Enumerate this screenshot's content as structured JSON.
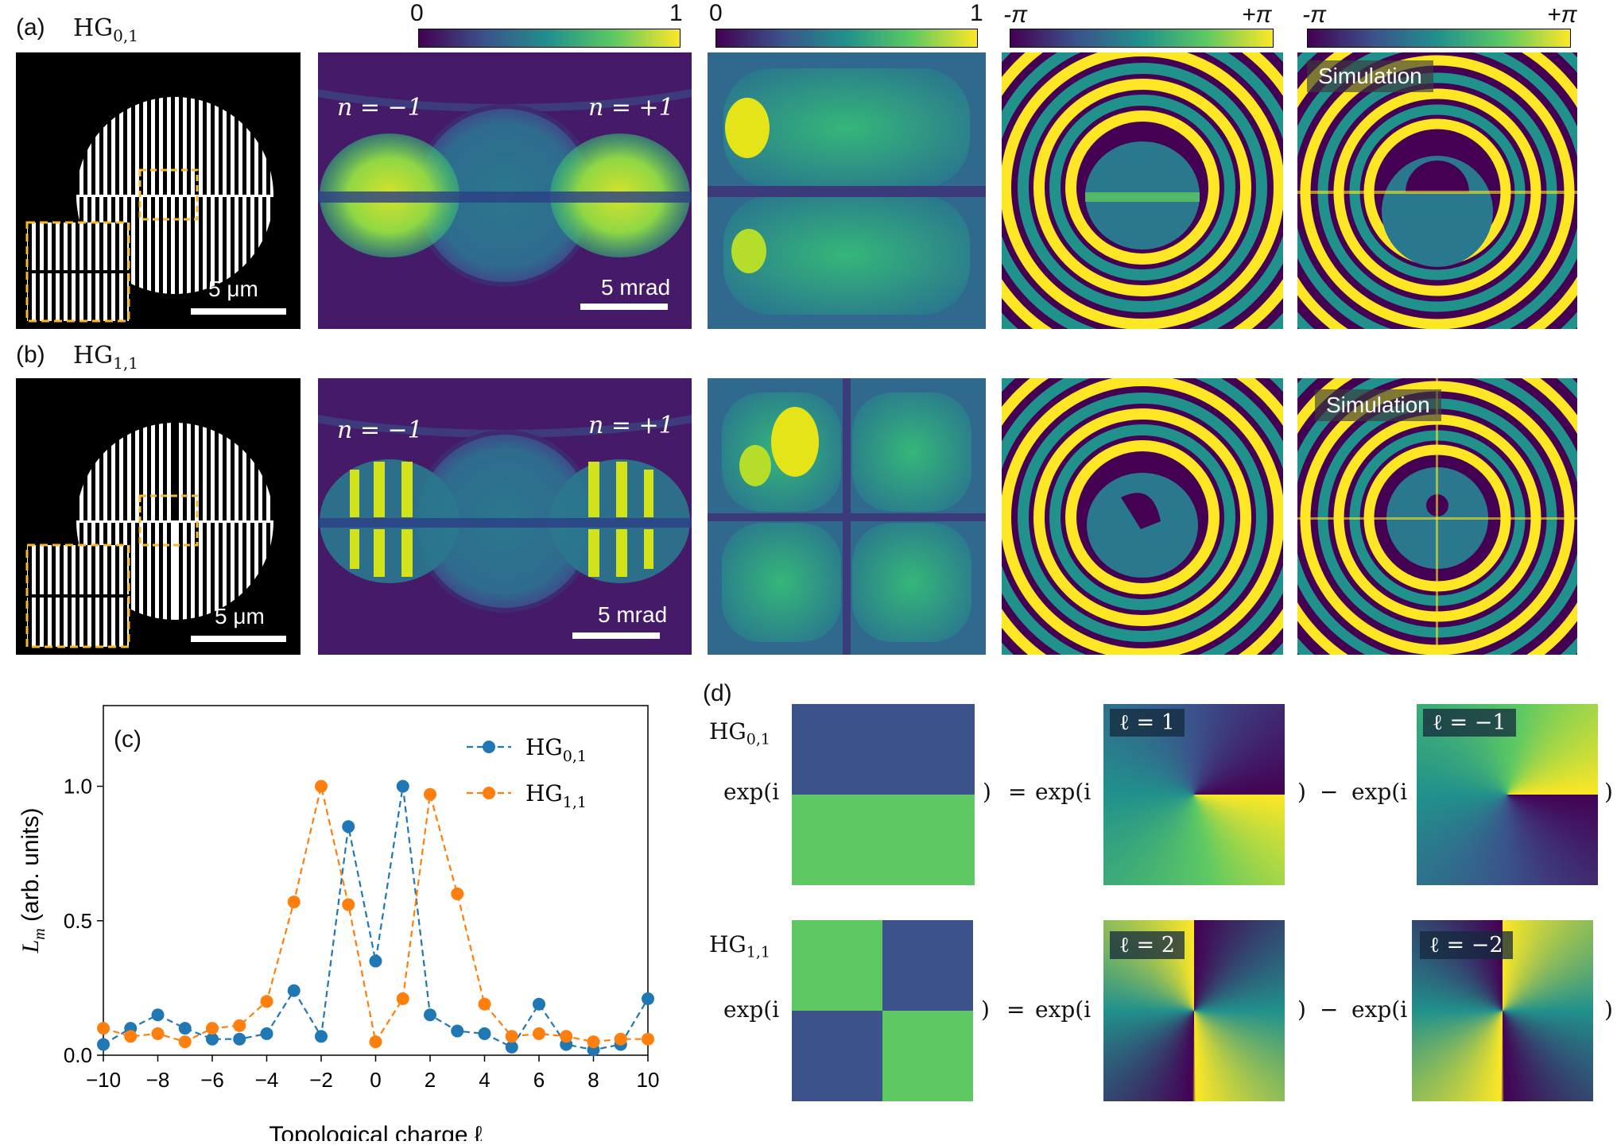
{
  "panel_a": {
    "label": "(a)",
    "mode_base": "HG",
    "mode_sub": "0,1"
  },
  "panel_b": {
    "label": "(b)",
    "mode_base": "HG",
    "mode_sub": "1,1"
  },
  "panel_c": {
    "label": "(c)"
  },
  "panel_d": {
    "label": "(d)"
  },
  "colorbars": [
    {
      "min": "0",
      "max": "1"
    },
    {
      "min": "0",
      "max": "1"
    },
    {
      "min": "-π",
      "max": "+π"
    },
    {
      "min": "-π",
      "max": "+π"
    }
  ],
  "annotations": {
    "scale_um": "5 μm",
    "scale_mrad": "5 mrad",
    "n_minus": "n = −1",
    "n_plus": "n = +1",
    "simulation": "Simulation"
  },
  "decomposition": {
    "exp_open": "exp(i",
    "close_paren": ")",
    "equals": "=",
    "minus": "−",
    "row1": {
      "mode_base": "HG",
      "mode_sub": "0,1",
      "l_pos": "ℓ = 1",
      "l_neg": "ℓ = −1"
    },
    "row2": {
      "mode_base": "HG",
      "mode_sub": "1,1",
      "l_pos": "ℓ = 2",
      "l_neg": "ℓ = −2"
    }
  },
  "chart_data": {
    "type": "line",
    "title": "",
    "xlabel": "Topological charge ℓ",
    "ylabel": "L_m (arb. units)",
    "ylabel_main": "L",
    "ylabel_sub": "m",
    "ylabel_rest": " (arb. units)",
    "xlim": [
      -10,
      10
    ],
    "ylim": [
      0,
      1.3
    ],
    "x_ticks": [
      -10,
      -8,
      -6,
      -4,
      -2,
      0,
      2,
      4,
      6,
      8,
      10
    ],
    "x_tick_labels": [
      "−10",
      "−8",
      "−6",
      "−4",
      "−2",
      "0",
      "2",
      "4",
      "6",
      "8",
      "10"
    ],
    "y_ticks": [
      0,
      0.5,
      1.0
    ],
    "y_tick_labels": [
      "0.0",
      "0.5",
      "1.0"
    ],
    "legend_position": "top-right",
    "x": [
      -10,
      -9,
      -8,
      -7,
      -6,
      -5,
      -4,
      -3,
      -2,
      -1,
      0,
      1,
      2,
      3,
      4,
      5,
      6,
      7,
      8,
      9,
      10
    ],
    "series": [
      {
        "name": "HG0,1",
        "name_base": "HG",
        "name_sub": "0,1",
        "color": "#1f77b4",
        "values": [
          0.04,
          0.1,
          0.15,
          0.1,
          0.06,
          0.06,
          0.08,
          0.24,
          0.07,
          0.85,
          0.35,
          1.0,
          0.15,
          0.09,
          0.08,
          0.03,
          0.19,
          0.04,
          0.02,
          0.04,
          0.21
        ]
      },
      {
        "name": "HG1,1",
        "name_base": "HG",
        "name_sub": "1,1",
        "color": "#ff7f0e",
        "values": [
          0.1,
          0.07,
          0.08,
          0.05,
          0.1,
          0.11,
          0.2,
          0.57,
          1.0,
          0.56,
          0.05,
          0.21,
          0.97,
          0.6,
          0.19,
          0.07,
          0.08,
          0.07,
          0.05,
          0.06,
          0.06
        ]
      }
    ]
  }
}
